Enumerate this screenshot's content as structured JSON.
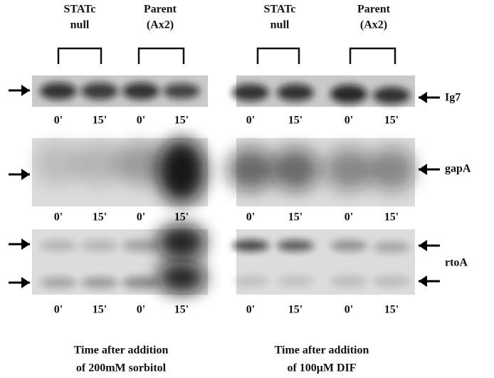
{
  "panels": [
    {
      "groups": [
        {
          "label": [
            "STATc",
            "null"
          ]
        },
        {
          "label": [
            "Parent",
            "(Ax2)"
          ]
        }
      ],
      "blots": [
        {
          "lanes": [
            "0'",
            "15'",
            "0'",
            "15'"
          ]
        },
        {
          "lanes": [
            "0'",
            "15'",
            "0'",
            "15'"
          ]
        },
        {
          "lanes": [
            "0'",
            "15'",
            "0'",
            "15'"
          ]
        }
      ],
      "caption": [
        "Time after addition",
        "of 200mM sorbitol"
      ]
    },
    {
      "groups": [
        {
          "label": [
            "STATc",
            "null"
          ]
        },
        {
          "label": [
            "Parent",
            "(Ax2)"
          ]
        }
      ],
      "blots": [
        {
          "lanes": [
            "0'",
            "15'",
            "0'",
            "15'"
          ]
        },
        {
          "lanes": [
            "0'",
            "15'",
            "0'",
            "15'"
          ]
        },
        {
          "lanes": [
            "0'",
            "15'",
            "0'",
            "15'"
          ]
        }
      ],
      "caption": [
        "Time after addition",
        "of 100μM DIF"
      ]
    }
  ],
  "genes": [
    "Ig7",
    "gapA",
    "rtoA"
  ]
}
